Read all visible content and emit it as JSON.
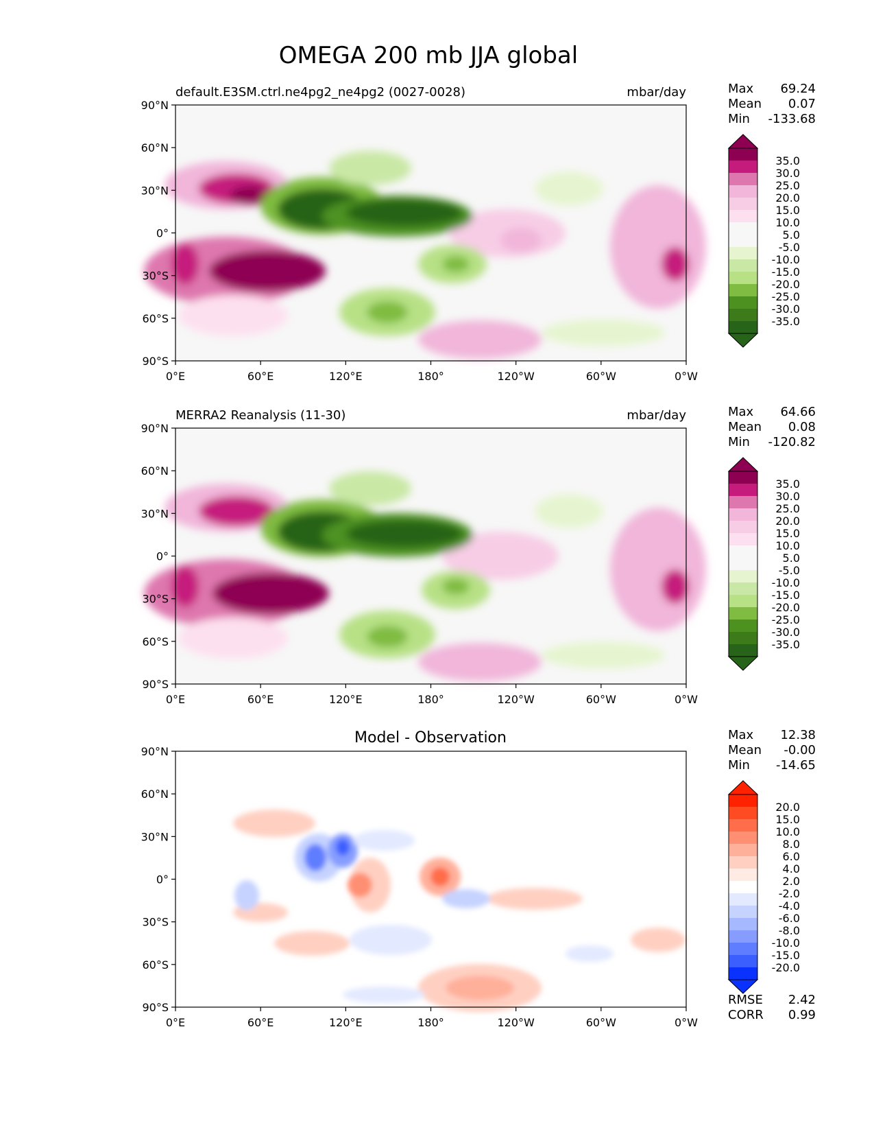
{
  "figure": {
    "title": "OMEGA 200 mb JJA global"
  },
  "x_ticks": [
    "0°E",
    "60°E",
    "120°E",
    "180°",
    "120°W",
    "60°W",
    "0°W"
  ],
  "y_ticks": [
    "90°N",
    "60°N",
    "30°N",
    "0°",
    "30°S",
    "60°S",
    "90°S"
  ],
  "chart_data": [
    {
      "type": "heatmap",
      "title": "",
      "left_label": "default.E3SM.ctrl.ne4pg2_ne4pg2 (0027-0028)",
      "units": "mbar/day",
      "xlim": [
        0,
        360
      ],
      "ylim": [
        -90,
        90
      ],
      "stats": [
        {
          "label": "Max",
          "value": "69.24"
        },
        {
          "label": "Mean",
          "value": "0.07"
        },
        {
          "label": "Min",
          "value": "-133.68"
        }
      ],
      "colorbar_levels": [
        "35.0",
        "30.0",
        "25.0",
        "20.0",
        "15.0",
        "10.0",
        "5.0",
        "-5.0",
        "-10.0",
        "-15.0",
        "-20.0",
        "-25.0",
        "-30.0",
        "-35.0"
      ],
      "colorbar_colors": [
        "#8e0152",
        "#c51b7d",
        "#de77ae",
        "#f1b6da",
        "#f7cde6",
        "#fde0ef",
        "#f7f7f7",
        "#f7f7f7",
        "#e6f5d0",
        "#c9e8a5",
        "#b8e186",
        "#7fbc41",
        "#4d9221",
        "#3c7a1a",
        "#276419"
      ]
    },
    {
      "type": "heatmap",
      "title": "",
      "left_label": "MERRA2 Reanalysis (11-30)",
      "units": "mbar/day",
      "xlim": [
        0,
        360
      ],
      "ylim": [
        -90,
        90
      ],
      "stats": [
        {
          "label": "Max",
          "value": "64.66"
        },
        {
          "label": "Mean",
          "value": "0.08"
        },
        {
          "label": "Min",
          "value": "-120.82"
        }
      ],
      "colorbar_levels": [
        "35.0",
        "30.0",
        "25.0",
        "20.0",
        "15.0",
        "10.0",
        "5.0",
        "-5.0",
        "-10.0",
        "-15.0",
        "-20.0",
        "-25.0",
        "-30.0",
        "-35.0"
      ],
      "colorbar_colors": [
        "#8e0152",
        "#c51b7d",
        "#de77ae",
        "#f1b6da",
        "#f7cde6",
        "#fde0ef",
        "#f7f7f7",
        "#f7f7f7",
        "#e6f5d0",
        "#c9e8a5",
        "#b8e186",
        "#7fbc41",
        "#4d9221",
        "#3c7a1a",
        "#276419"
      ]
    },
    {
      "type": "heatmap",
      "title": "Model - Observation",
      "left_label": "",
      "units": "",
      "xlim": [
        0,
        360
      ],
      "ylim": [
        -90,
        90
      ],
      "stats": [
        {
          "label": "Max",
          "value": "12.38"
        },
        {
          "label": "Mean",
          "value": "-0.00"
        },
        {
          "label": "Min",
          "value": "-14.65"
        }
      ],
      "extra_stats": [
        {
          "label": "RMSE",
          "value": "2.42"
        },
        {
          "label": "CORR",
          "value": "0.99"
        }
      ],
      "colorbar_levels": [
        "20.0",
        "15.0",
        "10.0",
        "8.0",
        "6.0",
        "4.0",
        "2.0",
        "-2.0",
        "-4.0",
        "-6.0",
        "-8.0",
        "-10.0",
        "-15.0",
        "-20.0"
      ],
      "colorbar_colors": [
        "#ff2200",
        "#ff4b22",
        "#ff6d4a",
        "#ff8f72",
        "#ffb09b",
        "#ffd0c2",
        "#ffebe4",
        "#ffffff",
        "#e3e9ff",
        "#c6d3ff",
        "#a6b8ff",
        "#869dff",
        "#5f7eff",
        "#3b5eff",
        "#0a32ff"
      ]
    }
  ]
}
